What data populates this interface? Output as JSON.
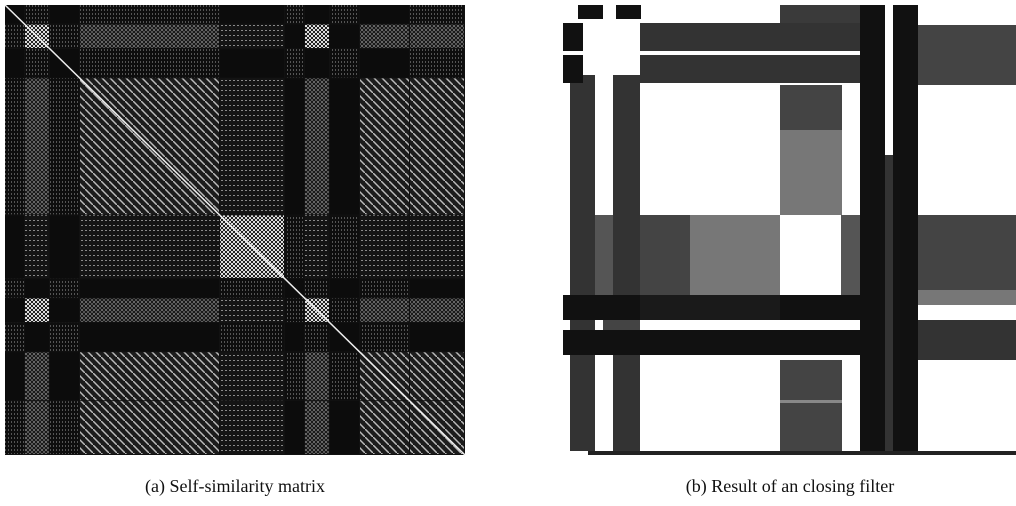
{
  "figure": {
    "panels": [
      {
        "caption": "(a) Self-similarity matrix"
      },
      {
        "caption": "(b) Result of an closing filter"
      }
    ]
  }
}
